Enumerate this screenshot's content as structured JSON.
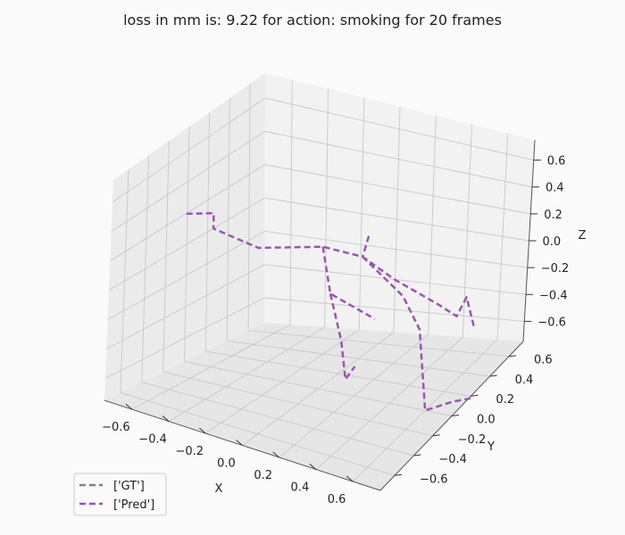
{
  "chart_data": {
    "type": "line",
    "title": "loss in mm is: 9.22 for action: smoking for 20 frames",
    "xlabel": "X",
    "ylabel": "Y",
    "zlabel": "Z",
    "xticks": [
      "−0.6",
      "−0.4",
      "−0.2",
      "0.0",
      "0.2",
      "0.4",
      "0.6"
    ],
    "yticks": [
      "−0.6",
      "−0.4",
      "−0.2",
      "0.0",
      "0.2",
      "0.4",
      "0.6"
    ],
    "zticks": [
      "−0.6",
      "−0.4",
      "−0.2",
      "0.0",
      "0.2",
      "0.4",
      "0.6"
    ],
    "xlim": [
      -0.75,
      0.75
    ],
    "ylim": [
      -0.75,
      0.75
    ],
    "zlim": [
      -0.75,
      0.75
    ],
    "grid": true,
    "legend_position": "lower-left",
    "series": [
      {
        "name": "['GT']",
        "color": "#808080",
        "linestyle": "dashed",
        "segments": []
      },
      {
        "name": "['Pred']",
        "color": "#9a55b0",
        "linestyle": "dashed",
        "segments": [
          [
            [
              -0.7,
              -0.1,
              0.25
            ],
            [
              -0.55,
              -0.1,
              0.3
            ],
            [
              -0.55,
              -0.1,
              0.2
            ],
            [
              -0.3,
              -0.1,
              0.15
            ],
            [
              0.0,
              0.0,
              0.2
            ],
            [
              0.22,
              0.0,
              0.2
            ],
            [
              0.4,
              0.0,
              0.1
            ],
            [
              0.65,
              0.0,
              0.0
            ],
            [
              0.75,
              0.0,
              -0.05
            ],
            [
              0.8,
              0.0,
              0.1
            ],
            [
              0.85,
              0.0,
              -0.1
            ]
          ],
          [
            [
              0.25,
              0.0,
              0.35
            ],
            [
              0.22,
              0.0,
              0.2
            ]
          ],
          [
            [
              0.0,
              0.0,
              0.2
            ],
            [
              0.05,
              0.0,
              -0.1
            ],
            [
              0.3,
              0.0,
              -0.2
            ]
          ],
          [
            [
              0.22,
              0.0,
              0.2
            ],
            [
              0.45,
              0.0,
              0.0
            ],
            [
              0.55,
              0.0,
              -0.2
            ],
            [
              0.6,
              0.0,
              -0.75
            ],
            [
              0.75,
              0.0,
              -0.65
            ],
            [
              0.85,
              0.0,
              -0.6
            ]
          ],
          [
            [
              0.05,
              0.0,
              -0.1
            ],
            [
              0.12,
              0.0,
              -0.4
            ],
            [
              0.15,
              0.0,
              -0.65
            ],
            [
              0.2,
              0.0,
              -0.55
            ]
          ]
        ]
      }
    ]
  }
}
